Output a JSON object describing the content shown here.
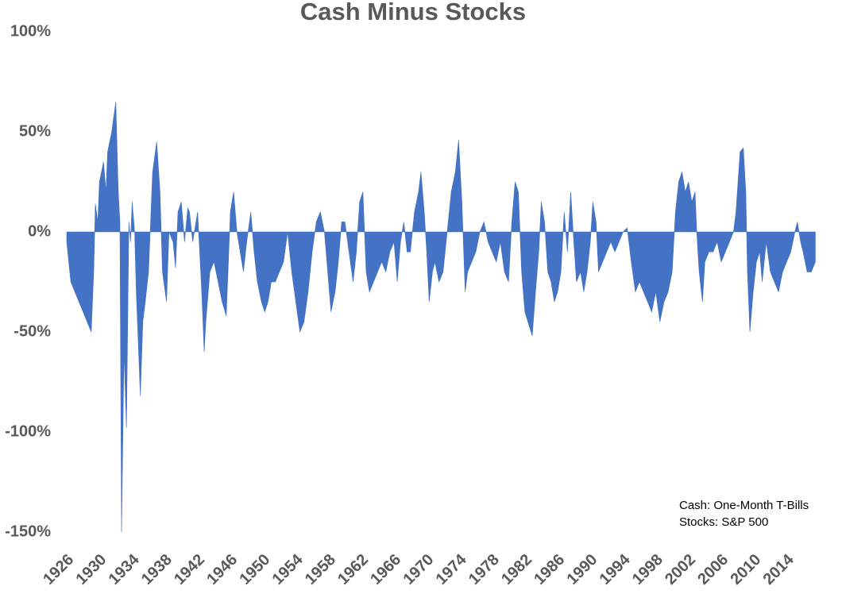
{
  "chart_data": {
    "type": "area",
    "title": "Cash Minus Stocks",
    "annotations": [
      "Cash: One-Month T-Bills",
      "Stocks: S&P 500"
    ],
    "color": "#4472c4",
    "xlim": [
      1926,
      2018
    ],
    "xticks": [
      1926,
      1930,
      1934,
      1938,
      1942,
      1946,
      1950,
      1954,
      1958,
      1962,
      1966,
      1970,
      1974,
      1978,
      1982,
      1986,
      1990,
      1994,
      1998,
      2002,
      2006,
      2010,
      2014
    ],
    "ylim": [
      -150,
      100
    ],
    "yticks": [
      {
        "value": -150,
        "label": "-150%"
      },
      {
        "value": -100,
        "label": "-100%"
      },
      {
        "value": -50,
        "label": "-50%"
      },
      {
        "value": 0,
        "label": "0%"
      },
      {
        "value": 50,
        "label": "50%"
      },
      {
        "value": 100,
        "label": "100%"
      }
    ],
    "x": [
      1926,
      1926.5,
      1927,
      1927.5,
      1928,
      1928.5,
      1929,
      1929.3,
      1929.5,
      1929.8,
      1930,
      1930.5,
      1930.8,
      1931,
      1931.5,
      1932,
      1932.3,
      1932.5,
      1932.7,
      1933,
      1933.3,
      1933.6,
      1933.8,
      1934,
      1934.3,
      1934.5,
      1935,
      1935.3,
      1935.6,
      1936,
      1936.5,
      1937,
      1937.4,
      1937.7,
      1938.2,
      1938.5,
      1939,
      1939.3,
      1939.6,
      1940,
      1940.4,
      1940.8,
      1941,
      1941.4,
      1942,
      1942.5,
      1942.8,
      1943,
      1943.5,
      1944,
      1944.5,
      1945,
      1945.5,
      1946,
      1946.4,
      1946.8,
      1947.2,
      1947.6,
      1948,
      1948.5,
      1948.9,
      1949.3,
      1949.8,
      1950.2,
      1950.6,
      1951,
      1951.5,
      1952,
      1952.5,
      1953,
      1953.5,
      1954,
      1954.5,
      1955,
      1955.5,
      1956,
      1956.5,
      1957,
      1957.5,
      1958,
      1958.3,
      1958.8,
      1959.2,
      1959.6,
      1960,
      1960.5,
      1961,
      1961.4,
      1961.8,
      1962.2,
      1962.6,
      1963,
      1963.5,
      1964,
      1964.5,
      1965,
      1965.5,
      1966,
      1966.4,
      1966.8,
      1967.2,
      1967.6,
      1968,
      1968.5,
      1969,
      1969.3,
      1969.7,
      1970,
      1970.3,
      1970.7,
      1971,
      1971.5,
      1972,
      1972.5,
      1973,
      1973.5,
      1973.9,
      1974.3,
      1974.7,
      1975,
      1975.5,
      1976,
      1976.5,
      1977,
      1977.5,
      1978,
      1978.5,
      1979,
      1979.5,
      1980,
      1980.4,
      1980.8,
      1981.2,
      1981.6,
      1982,
      1982.9,
      1983.3,
      1983.7,
      1984,
      1984.4,
      1984.8,
      1985.2,
      1985.6,
      1986,
      1986.4,
      1986.8,
      1987.2,
      1987.6,
      1987.9,
      1988.3,
      1988.8,
      1989.2,
      1989.6,
      1990,
      1990.3,
      1990.7,
      1991,
      1991.5,
      1992,
      1992.5,
      1993,
      1993.5,
      1994,
      1994.5,
      1995,
      1995.5,
      1996,
      1996.5,
      1997,
      1997.5,
      1998,
      1998.5,
      1999,
      1999.5,
      2000,
      2000.4,
      2000.8,
      2001.2,
      2001.6,
      2002,
      2002.4,
      2002.8,
      2003,
      2003.3,
      2003.7,
      2004,
      2004.5,
      2005,
      2005.5,
      2006,
      2006.5,
      2007,
      2007.5,
      2007.8,
      2008.3,
      2008.7,
      2009,
      2009.2,
      2009.5,
      2009.9,
      2010.3,
      2010.7,
      2011,
      2011.5,
      2012,
      2012.5,
      2013,
      2013.5,
      2014,
      2014.5,
      2015,
      2015.3,
      2015.7,
      2016,
      2016.5,
      2017,
      2017.5
    ],
    "values": [
      -5,
      -25,
      -30,
      -35,
      -40,
      -45,
      -50,
      -20,
      14,
      5,
      25,
      35,
      20,
      40,
      50,
      65,
      20,
      5,
      -150,
      -60,
      -98,
      5,
      -5,
      15,
      0,
      -30,
      -82,
      -45,
      -35,
      -20,
      30,
      45,
      20,
      -20,
      -35,
      0,
      -5,
      -18,
      10,
      15,
      -5,
      12,
      10,
      -5,
      10,
      -30,
      -60,
      -45,
      -20,
      -15,
      -25,
      -35,
      -42,
      10,
      20,
      0,
      -10,
      -20,
      -5,
      10,
      -10,
      -25,
      -35,
      -40,
      -35,
      -25,
      -25,
      -20,
      -15,
      0,
      -20,
      -35,
      -50,
      -45,
      -30,
      -10,
      5,
      10,
      0,
      -25,
      -40,
      -30,
      -15,
      5,
      5,
      -10,
      -25,
      -10,
      15,
      20,
      -20,
      -30,
      -25,
      -20,
      -15,
      -20,
      -10,
      -5,
      -25,
      -5,
      5,
      -10,
      -10,
      10,
      20,
      30,
      10,
      -10,
      -35,
      -20,
      -15,
      -25,
      -20,
      0,
      20,
      30,
      46,
      15,
      -30,
      -20,
      -15,
      -10,
      0,
      5,
      -5,
      -10,
      -15,
      -5,
      -20,
      -25,
      5,
      25,
      20,
      -20,
      -40,
      -52,
      -30,
      -10,
      15,
      5,
      -20,
      -25,
      -35,
      -30,
      -20,
      10,
      -10,
      20,
      0,
      -25,
      -20,
      -30,
      -20,
      -5,
      15,
      5,
      -20,
      -15,
      -10,
      -5,
      -10,
      -5,
      0,
      2,
      -15,
      -30,
      -25,
      -30,
      -35,
      -40,
      -30,
      -45,
      -35,
      -30,
      -20,
      10,
      25,
      30,
      20,
      25,
      15,
      20,
      0,
      -20,
      -35,
      -15,
      -10,
      -10,
      -5,
      -15,
      -10,
      -5,
      0,
      10,
      40,
      42,
      20,
      -20,
      -50,
      -30,
      -15,
      -10,
      -25,
      -5,
      -20,
      -25,
      -30,
      -20,
      -15,
      -10,
      0,
      5,
      -5,
      -10,
      -20,
      -20,
      -15
    ]
  }
}
